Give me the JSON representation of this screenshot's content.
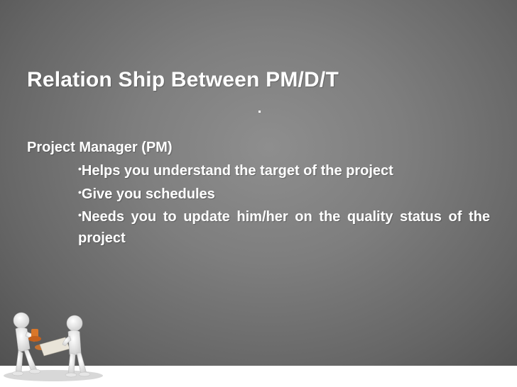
{
  "slide": {
    "title": "Relation Ship Between PM/D/T",
    "section_heading": "Project Manager (PM)",
    "bullet_glyph": "•",
    "bullets": [
      "Helps you understand the target of the project",
      "Give you schedules",
      "Needs you to update him/her on the quality status of the project"
    ],
    "illustration": "two-people-stamping-document-icon",
    "colors": {
      "background": "#7a7a7a",
      "text": "#ffffff",
      "stamp_accent": "#d9772a"
    }
  }
}
